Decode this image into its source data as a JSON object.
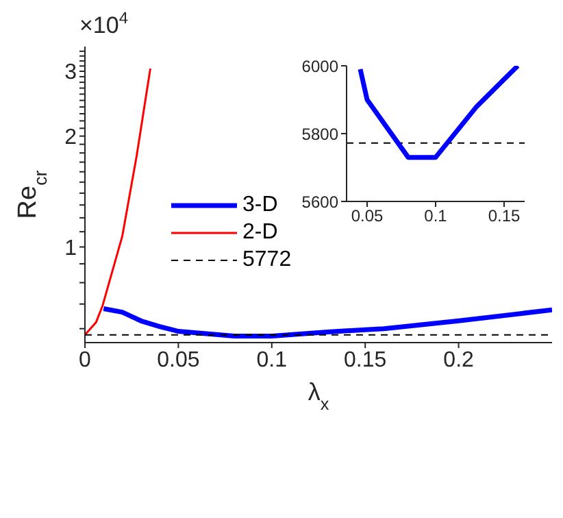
{
  "chart_data": [
    {
      "type": "line",
      "xlabel": "λ$_{x}$",
      "ylabel": "Re$_{cr}$",
      "annotations": [
        "×10$^{4}$"
      ],
      "log": "y",
      "xlim": [
        0,
        0.25
      ],
      "xticks": [
        0,
        0.05,
        0.1,
        0.15,
        0.2
      ],
      "ylim": [
        0.55,
        3.5
      ],
      "yticks": [
        {
          "value": 0.6,
          "label": null
        },
        {
          "value": 0.7,
          "label": null
        },
        {
          "value": 0.8,
          "label": null
        },
        {
          "value": 0.9,
          "label": null
        },
        1,
        {
          "value": 1.1,
          "label": null
        },
        {
          "value": 1.2,
          "label": null
        },
        {
          "value": 1.3,
          "label": null
        },
        {
          "value": 1.4,
          "label": null
        },
        {
          "value": 1.5,
          "label": null
        },
        {
          "value": 1.6,
          "label": null
        },
        {
          "value": 1.7,
          "label": null
        },
        {
          "value": 1.8,
          "label": null
        },
        {
          "value": 1.9,
          "label": null
        },
        2,
        {
          "value": 2.1,
          "label": null
        },
        {
          "value": 2.2,
          "label": null
        },
        {
          "value": 2.3,
          "label": null
        },
        {
          "value": 2.4,
          "label": null
        },
        {
          "value": 2.5,
          "label": null
        },
        {
          "value": 2.6,
          "label": null
        },
        {
          "value": 2.7,
          "label": null
        },
        {
          "value": 2.8,
          "label": null
        },
        {
          "value": 2.9,
          "label": null
        },
        3,
        {
          "value": 3.1,
          "label": null
        },
        {
          "value": 3.2,
          "label": null
        },
        {
          "value": 3.3,
          "label": null
        },
        {
          "value": 3.4,
          "label": null
        }
      ],
      "legend": "left",
      "grid": false,
      "series": [
        {
          "name": "3-D",
          "color": "#0000ff",
          "x": [
            0.01,
            0.02,
            0.03,
            0.04,
            0.05,
            0.08,
            0.1,
            0.13,
            0.15,
            0.16,
            0.2,
            0.25
          ],
          "values": [
            0.68,
            0.665,
            0.63,
            0.608,
            0.59,
            0.573,
            0.573,
            0.588,
            0.596,
            0.6,
            0.63,
            0.675
          ]
        },
        {
          "name": "2-D",
          "color": "#ff0000",
          "x": [
            0,
            0.006,
            0.0095,
            0.02,
            0.0277,
            0.035
          ],
          "values": [
            0.5772,
            0.625,
            0.694,
            1.07,
            1.77,
            3.05
          ]
        },
        {
          "name": "5772",
          "color": "#000000",
          "line_style": "dashed",
          "x": [
            0,
            0.25
          ],
          "values": [
            0.5772,
            0.5772
          ]
        }
      ]
    },
    {
      "type": "line",
      "xlim": [
        0.035,
        0.165
      ],
      "xticks": [
        0.05,
        0.1,
        0.15
      ],
      "ylim": [
        5600,
        6000
      ],
      "yticks": [
        5600,
        5800,
        6000
      ],
      "grid": false,
      "series": [
        {
          "color": "#0000ff",
          "x": [
            0.045,
            0.05,
            0.08,
            0.1,
            0.13,
            0.15,
            0.16
          ],
          "values": [
            5990,
            5900,
            5730,
            5730,
            5880,
            5960,
            6000
          ]
        }
      ],
      "ref_lines": [
        {
          "axis": "y",
          "value": 5772,
          "color": "#000000",
          "line_style": "dashed"
        }
      ]
    }
  ]
}
